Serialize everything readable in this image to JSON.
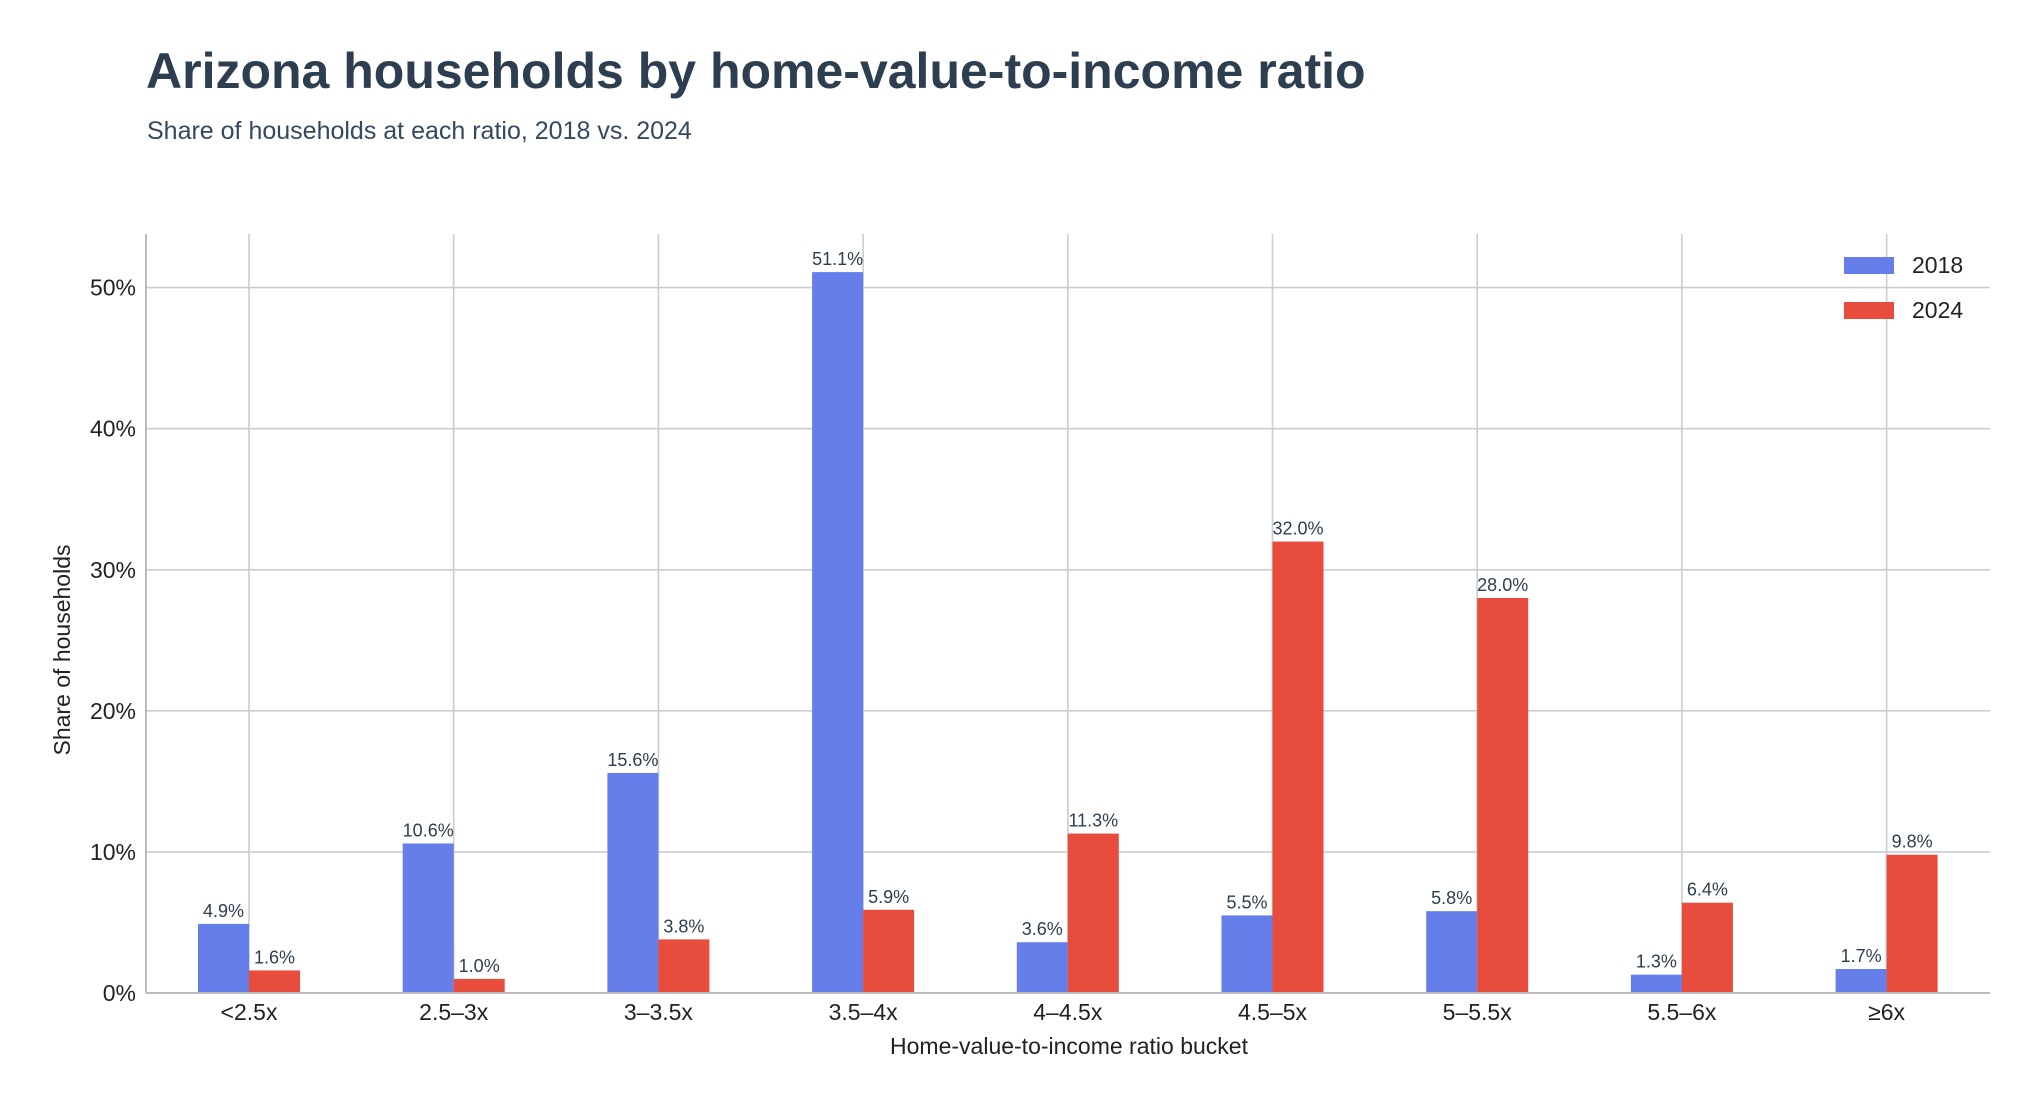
{
  "chart_data": {
    "type": "bar",
    "title": "Arizona households by home-value-to-income ratio",
    "subtitle": "Share of households at each ratio, 2018 vs. 2024",
    "xlabel": "Home-value-to-income ratio bucket",
    "ylabel": "Share of households",
    "ylim": [
      0,
      53.8
    ],
    "yticks": [
      0,
      10,
      20,
      30,
      40,
      50
    ],
    "ytick_labels": [
      "0%",
      "10%",
      "20%",
      "30%",
      "40%",
      "50%"
    ],
    "categories": [
      "<2.5x",
      "2.5–3x",
      "3–3.5x",
      "3.5–4x",
      "4–4.5x",
      "4.5–5x",
      "5–5.5x",
      "5.5–6x",
      "≥6x"
    ],
    "series": [
      {
        "name": "2018",
        "color": "#667eea",
        "values": [
          4.9,
          10.6,
          15.6,
          51.1,
          3.6,
          5.5,
          5.8,
          1.3,
          1.7
        ],
        "labels": [
          "4.9%",
          "10.6%",
          "15.6%",
          "51.1%",
          "3.6%",
          "5.5%",
          "5.8%",
          "1.3%",
          "1.7%"
        ]
      },
      {
        "name": "2024",
        "color": "#e74c3c",
        "values": [
          1.6,
          1.0,
          3.8,
          5.9,
          11.3,
          32.0,
          28.0,
          6.4,
          9.8
        ],
        "labels": [
          "1.6%",
          "1.0%",
          "3.8%",
          "5.9%",
          "11.3%",
          "32.0%",
          "28.0%",
          "6.4%",
          "9.8%"
        ]
      }
    ],
    "grid": true,
    "legend_position": "top-right"
  }
}
